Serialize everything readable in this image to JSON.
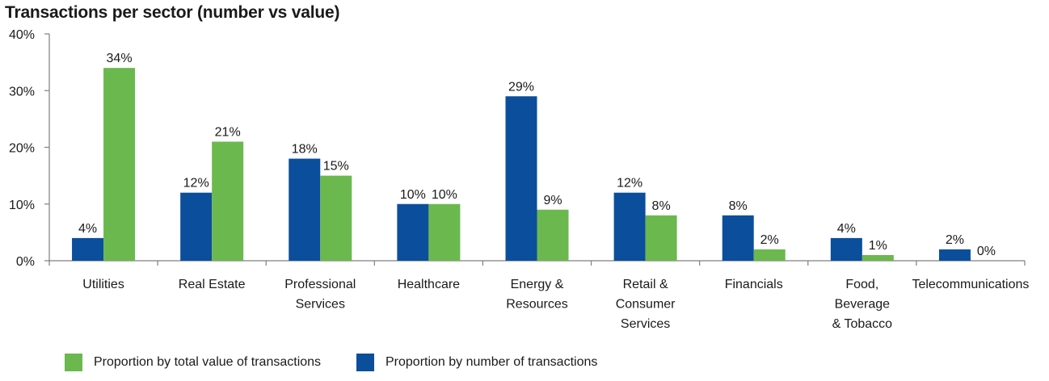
{
  "chart_data": {
    "type": "bar",
    "title": "Transactions per sector (number vs value)",
    "categories": [
      [
        "Utilities"
      ],
      [
        "Real Estate"
      ],
      [
        "Professional",
        "Services"
      ],
      [
        "Healthcare"
      ],
      [
        "Energy &",
        "Resources"
      ],
      [
        "Retail &",
        "Consumer",
        "Services"
      ],
      [
        "Financials"
      ],
      [
        "Food,",
        "Beverage",
        "& Tobacco"
      ],
      [
        "Telecommunications"
      ]
    ],
    "series": [
      {
        "name": "Proportion by number of transactions",
        "color": "#0B4E9C",
        "values": [
          4,
          12,
          18,
          10,
          29,
          12,
          8,
          4,
          2
        ],
        "labels": [
          "4%",
          "12%",
          "18%",
          "10%",
          "29%",
          "12%",
          "8%",
          "4%",
          "2%"
        ]
      },
      {
        "name": "Proportion by total value of transactions",
        "color": "#6BB84F",
        "values": [
          34,
          21,
          15,
          10,
          9,
          8,
          2,
          1,
          0
        ],
        "labels": [
          "34%",
          "21%",
          "15%",
          "10%",
          "9%",
          "8%",
          "2%",
          "1%",
          "0%"
        ]
      }
    ],
    "ylim": [
      0,
      40
    ],
    "yticks": [
      0,
      10,
      20,
      30,
      40
    ],
    "ytick_labels": [
      "0%",
      "10%",
      "20%",
      "30%",
      "40%"
    ],
    "xlabel": "",
    "ylabel": "",
    "grid": false,
    "legend": {
      "position": "bottom-left",
      "items": [
        {
          "label": "Proportion by total value of transactions",
          "color": "#6BB84F"
        },
        {
          "label": "Proportion by number of transactions",
          "color": "#0B4E9C"
        }
      ]
    }
  }
}
